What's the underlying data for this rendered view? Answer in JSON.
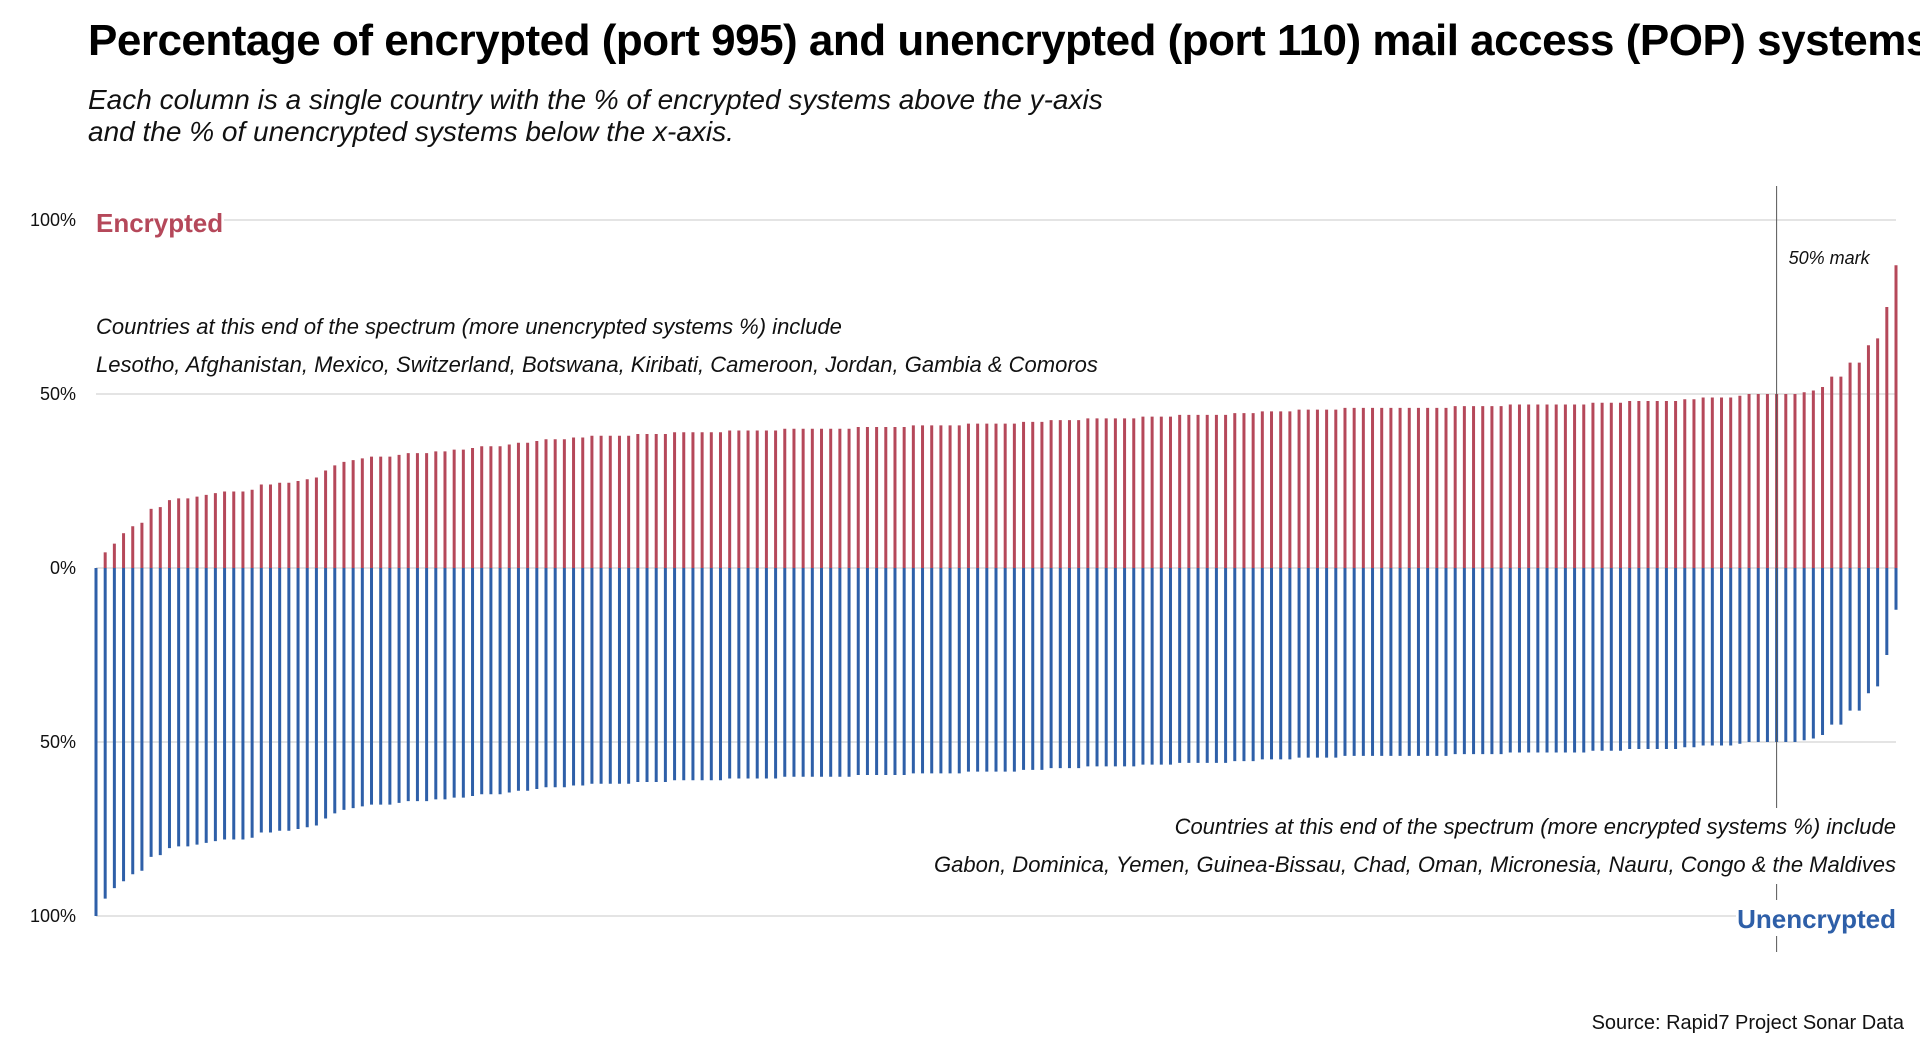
{
  "title": "Percentage of encrypted (port 995) and unencrypted (port 110) mail access (POP) systems",
  "subtitle_line1": "Each column is a single country with the % of encrypted systems above the y-axis",
  "subtitle_line2": "and the % of unencrypted systems below the x-axis.",
  "source": "Source: Rapid7 Project Sonar Data",
  "colors": {
    "encrypted": "#b5485a",
    "unencrypted": "#2e5fa8",
    "grid": "#c8c8c8",
    "marker_line": "#555555"
  },
  "chart_data": {
    "type": "bar",
    "layout": "diverging",
    "ylim": [
      -100,
      100
    ],
    "y_ticks": [
      {
        "value": 100,
        "label": "100%"
      },
      {
        "value": 50,
        "label": "50%"
      },
      {
        "value": 0,
        "label": "0%"
      },
      {
        "value": -50,
        "label": "50%"
      },
      {
        "value": -100,
        "label": "100%"
      }
    ],
    "grid": true,
    "encrypted_label": "Encrypted",
    "unencrypted_label": "Unencrypted",
    "annotations": {
      "left_line1": "Countries at this end of the spectrum (more unencrypted systems %) include",
      "left_line2": "Lesotho, Afghanistan, Mexico, Switzerland, Botswana, Kiribati, Cameroon, Jordan, Gambia & Comoros",
      "right_line1": "Countries at this end of the spectrum (more encrypted systems %) include",
      "right_line2": "Gabon, Dominica, Yemen, Guinea-Bissau, Chad, Oman, Micronesia, Nauru, Congo & the Maldives",
      "mark_label": "50% mark"
    },
    "marker_index": 183,
    "encrypted": [
      0,
      4.5,
      7,
      10,
      12,
      13,
      17,
      17.5,
      19.5,
      20,
      20,
      20.5,
      21,
      21.5,
      22,
      22,
      22,
      22.5,
      24,
      24,
      24.5,
      24.5,
      25,
      25.5,
      26,
      28,
      29.5,
      30.5,
      31,
      31.5,
      32,
      32,
      32,
      32.5,
      33,
      33,
      33,
      33.5,
      33.5,
      34,
      34,
      34.5,
      35,
      35,
      35,
      35.5,
      36,
      36,
      36.5,
      37,
      37,
      37,
      37.5,
      37.5,
      38,
      38,
      38,
      38,
      38,
      38.5,
      38.5,
      38.5,
      38.5,
      39,
      39,
      39,
      39,
      39,
      39,
      39.5,
      39.5,
      39.5,
      39.5,
      39.5,
      39.5,
      40,
      40,
      40,
      40,
      40,
      40,
      40,
      40,
      40.5,
      40.5,
      40.5,
      40.5,
      40.5,
      40.5,
      41,
      41,
      41,
      41,
      41,
      41,
      41.5,
      41.5,
      41.5,
      41.5,
      41.5,
      41.5,
      42,
      42,
      42,
      42.5,
      42.5,
      42.5,
      42.5,
      43,
      43,
      43,
      43,
      43,
      43,
      43.5,
      43.5,
      43.5,
      43.5,
      44,
      44,
      44,
      44,
      44,
      44,
      44.5,
      44.5,
      44.5,
      45,
      45,
      45,
      45,
      45.5,
      45.5,
      45.5,
      45.5,
      45.5,
      46,
      46,
      46,
      46,
      46,
      46,
      46,
      46,
      46,
      46,
      46,
      46,
      46.5,
      46.5,
      46.5,
      46.5,
      46.5,
      46.5,
      47,
      47,
      47,
      47,
      47,
      47,
      47,
      47,
      47,
      47.5,
      47.5,
      47.5,
      47.5,
      48,
      48,
      48,
      48,
      48,
      48,
      48.5,
      48.5,
      49,
      49,
      49,
      49,
      49.5,
      50,
      50,
      50,
      50,
      50,
      50,
      50.5,
      51,
      52,
      55,
      55,
      59,
      59,
      64,
      66,
      75,
      87
    ],
    "unencrypted": [
      100,
      95,
      92,
      90,
      88,
      87,
      83,
      82.5,
      80.5,
      80,
      80,
      79.5,
      79,
      78.5,
      78,
      78,
      78,
      77.5,
      76,
      76,
      75.5,
      75.5,
      75,
      74.5,
      74,
      72,
      70.5,
      69.5,
      69,
      68.5,
      68,
      68,
      68,
      67.5,
      67,
      67,
      67,
      66.5,
      66.5,
      66,
      66,
      65.5,
      65,
      65,
      65,
      64.5,
      64,
      64,
      63.5,
      63,
      63,
      63,
      62.5,
      62.5,
      62,
      62,
      62,
      62,
      62,
      61.5,
      61.5,
      61.5,
      61.5,
      61,
      61,
      61,
      61,
      61,
      61,
      60.5,
      60.5,
      60.5,
      60.5,
      60.5,
      60.5,
      60,
      60,
      60,
      60,
      60,
      60,
      60,
      60,
      59.5,
      59.5,
      59.5,
      59.5,
      59.5,
      59.5,
      59,
      59,
      59,
      59,
      59,
      59,
      58.5,
      58.5,
      58.5,
      58.5,
      58.5,
      58.5,
      58,
      58,
      58,
      57.5,
      57.5,
      57.5,
      57.5,
      57,
      57,
      57,
      57,
      57,
      57,
      56.5,
      56.5,
      56.5,
      56.5,
      56,
      56,
      56,
      56,
      56,
      56,
      55.5,
      55.5,
      55.5,
      55,
      55,
      55,
      55,
      54.5,
      54.5,
      54.5,
      54.5,
      54.5,
      54,
      54,
      54,
      54,
      54,
      54,
      54,
      54,
      54,
      54,
      54,
      54,
      53.5,
      53.5,
      53.5,
      53.5,
      53.5,
      53.5,
      53,
      53,
      53,
      53,
      53,
      53,
      53,
      53,
      53,
      52.5,
      52.5,
      52.5,
      52.5,
      52,
      52,
      52,
      52,
      52,
      52,
      51.5,
      51.5,
      51,
      51,
      51,
      51,
      50.5,
      50,
      50,
      50,
      50,
      50,
      50,
      49.5,
      49,
      48,
      45,
      45,
      41,
      41,
      36,
      34,
      25,
      12
    ]
  }
}
